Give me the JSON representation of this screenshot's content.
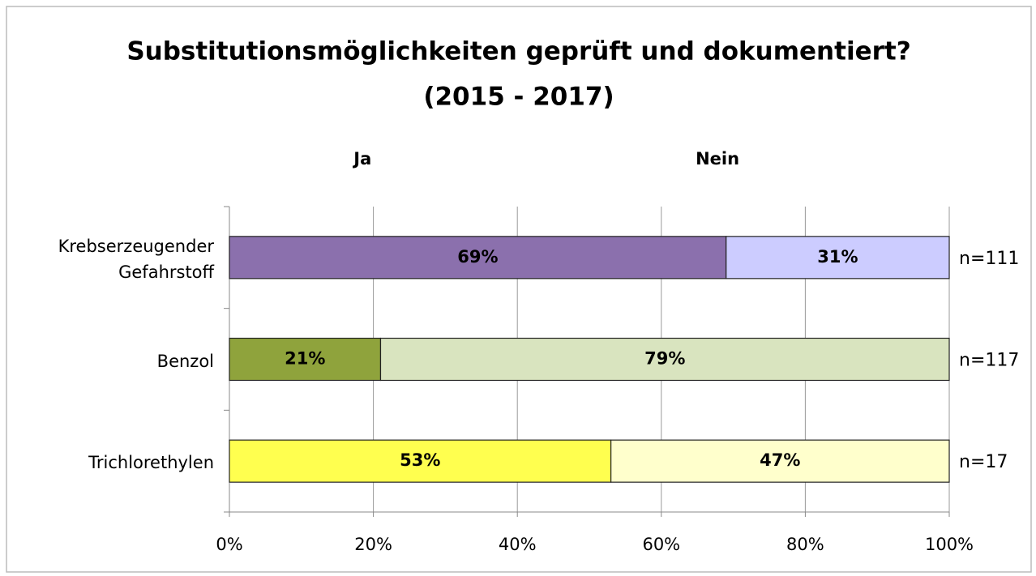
{
  "chart_data": {
    "type": "stacked-barh",
    "title": "Substitutionsmöglichkeiten geprüft und dokumentiert?",
    "subtitle": "(2015 - 2017)",
    "categories": [
      "Krebserzeugender Gefahrstoff",
      "Benzol",
      "Trichlorethylen"
    ],
    "series": [
      {
        "name": "Ja",
        "colors": [
          "#8b70ad",
          "#8fa33c",
          "#ffff4f"
        ],
        "values": [
          69,
          21,
          53
        ],
        "value_labels": [
          "69%",
          "21%",
          "53%"
        ]
      },
      {
        "name": "Nein",
        "colors": [
          "#ccccff",
          "#d9e4bf",
          "#ffffcc"
        ],
        "values": [
          31,
          79,
          47
        ],
        "value_labels": [
          "31%",
          "79%",
          "47%"
        ]
      }
    ],
    "annotations": [
      "n=111",
      "n=117",
      "n=17"
    ],
    "xlim": [
      0,
      100
    ],
    "xticks": [
      {
        "value": 0,
        "label": "0%"
      },
      {
        "value": 20,
        "label": "20%"
      },
      {
        "value": 40,
        "label": "40%"
      },
      {
        "value": 60,
        "label": "60%"
      },
      {
        "value": 80,
        "label": "80%"
      },
      {
        "value": 100,
        "label": "100%"
      }
    ],
    "grid": true
  }
}
